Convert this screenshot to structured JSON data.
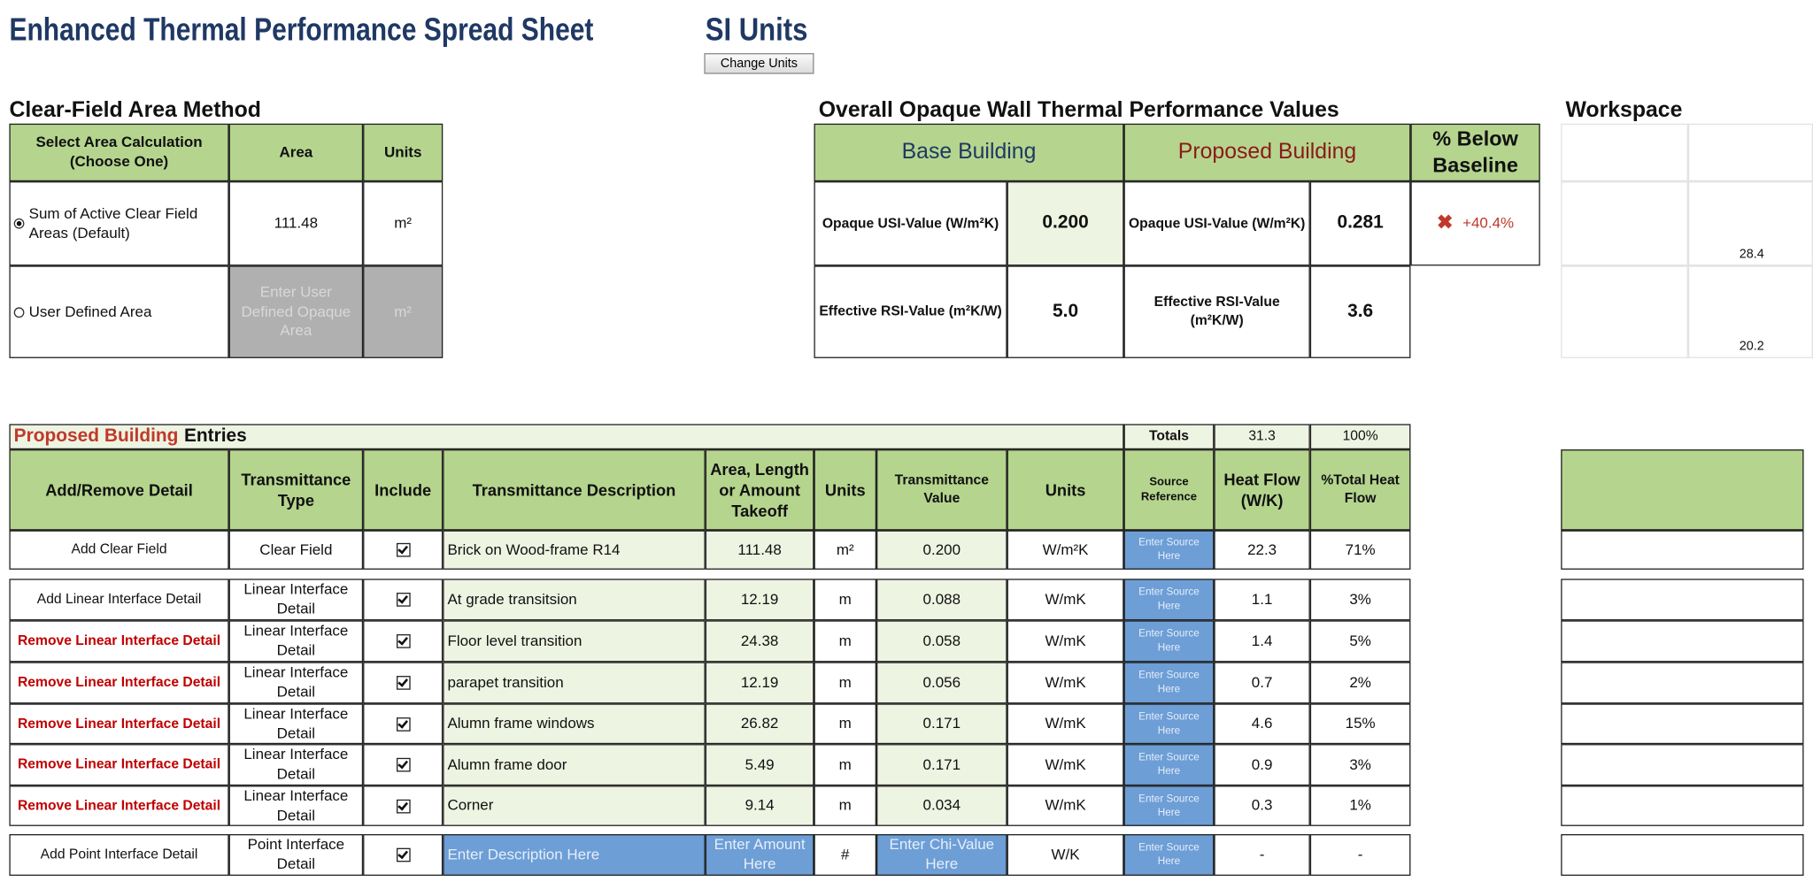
{
  "header": {
    "title": "Enhanced Thermal Performance Spread Sheet",
    "units": "SI Units",
    "change_units_button": "Change Units"
  },
  "clear_field": {
    "title": "Clear-Field Area Method",
    "columns": [
      "Select Area Calculation (Choose One)",
      "Area",
      "Units"
    ],
    "rows": [
      [
        "Sum of Active Clear Field Areas (Default)",
        "111.48",
        "m²"
      ],
      [
        "User Defined Area",
        "Enter User Defined Opaque Area",
        "m²"
      ]
    ]
  },
  "overall": {
    "title": "Overall Opaque Wall Thermal Performance Values",
    "columns": [
      "Base Building",
      "Proposed Building",
      "% Below Baseline"
    ],
    "rows": [
      [
        "Opaque USI-Value (W/m²K)",
        "0.200",
        "Opaque USI-Value (W/m²K)",
        "0.281",
        "+40.4%"
      ],
      [
        "Effective RSI-Value (m²K/W)",
        "5.0",
        "Effective RSI-Value (m²K/W)",
        "3.6"
      ]
    ]
  },
  "workspace": {
    "title": "Workspace",
    "values": [
      "28.4",
      "20.2"
    ]
  },
  "entries": {
    "title_highlight": "Proposed Building",
    "title_rest": "Entries",
    "totals_label": "Totals",
    "total_heat_flow": "31.3",
    "total_percent": "100%",
    "columns": [
      "Add/Remove Detail",
      "Transmittance Type",
      "Include",
      "Transmittance Description",
      "Area, Length or Amount Takeoff",
      "Units",
      "Transmittance Value",
      "Units",
      "Source Reference",
      "Heat Flow (W/K)",
      "%Total Heat Flow"
    ],
    "rows": [
      [
        "Add Clear Field",
        "Clear Field",
        "Brick on Wood-frame R14",
        "111.48",
        "m²",
        "0.200",
        "W/m²K",
        "Enter Source Here",
        "22.3",
        "71%"
      ],
      [
        "Add Linear Interface Detail",
        "Linear Interface Detail",
        "At grade transitsion",
        "12.19",
        "m",
        "0.088",
        "W/mK",
        "Enter Source Here",
        "1.1",
        "3%"
      ],
      [
        "Remove Linear Interface Detail",
        "Linear Interface Detail",
        "Floor level transition",
        "24.38",
        "m",
        "0.058",
        "W/mK",
        "Enter Source Here",
        "1.4",
        "5%"
      ],
      [
        "Remove Linear Interface Detail",
        "Linear Interface Detail",
        "parapet transition",
        "12.19",
        "m",
        "0.056",
        "W/mK",
        "Enter Source Here",
        "0.7",
        "2%"
      ],
      [
        "Remove Linear Interface Detail",
        "Linear Interface Detail",
        "Alumn frame windows",
        "26.82",
        "m",
        "0.171",
        "W/mK",
        "Enter Source Here",
        "4.6",
        "15%"
      ],
      [
        "Remove Linear Interface Detail",
        "Linear Interface Detail",
        "Alumn frame door",
        "5.49",
        "m",
        "0.171",
        "W/mK",
        "Enter Source Here",
        "0.9",
        "3%"
      ],
      [
        "Remove Linear Interface Detail",
        "Linear Interface Detail",
        "Corner",
        "9.14",
        "m",
        "0.034",
        "W/mK",
        "Enter Source Here",
        "0.3",
        "1%"
      ],
      [
        "Add Point Interface Detail",
        "Point Interface Detail",
        "Enter Description Here",
        "Enter Amount Here",
        "#",
        "Enter Chi-Value Here",
        "W/K",
        "Enter Source Here",
        "-",
        "-"
      ]
    ]
  }
}
